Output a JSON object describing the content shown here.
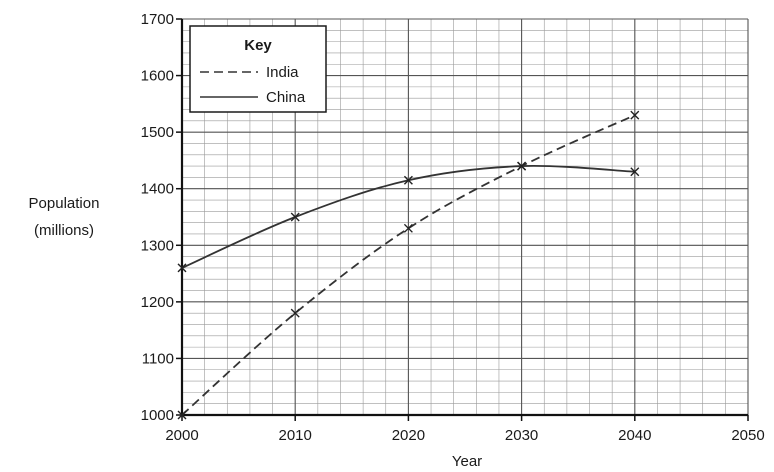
{
  "chart_data": {
    "type": "line",
    "xlabel": "Year",
    "ylabel_lines": [
      "Population",
      "(millions)"
    ],
    "xlim": [
      2000,
      2050
    ],
    "ylim": [
      1000,
      1700
    ],
    "x_ticks": [
      2000,
      2010,
      2020,
      2030,
      2040,
      2050
    ],
    "y_ticks": [
      1000,
      1100,
      1200,
      1300,
      1400,
      1500,
      1600,
      1700
    ],
    "grid": true,
    "legend": {
      "title": "Key",
      "placement": "top-left"
    },
    "series": [
      {
        "name": "India",
        "style": "dashed",
        "color": "#333333",
        "x": [
          2000,
          2010,
          2020,
          2030,
          2040
        ],
        "values": [
          1000,
          1180,
          1330,
          1440,
          1530
        ]
      },
      {
        "name": "China",
        "style": "solid",
        "color": "#333333",
        "x": [
          2000,
          2010,
          2020,
          2030,
          2040
        ],
        "values": [
          1260,
          1350,
          1415,
          1440,
          1430
        ]
      }
    ]
  }
}
